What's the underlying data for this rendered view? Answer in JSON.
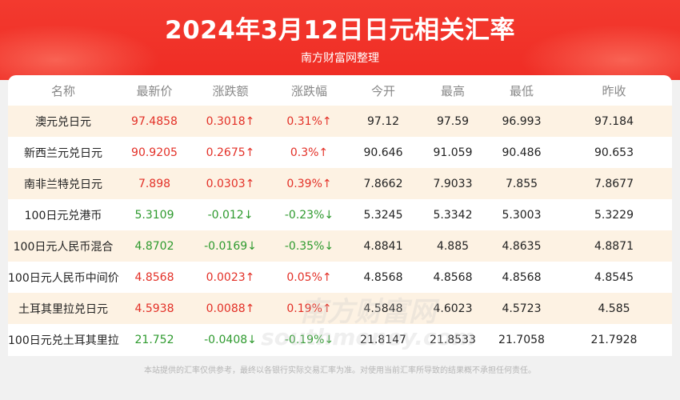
{
  "header": {
    "title": "2024年3月12日日元相关汇率",
    "subtitle": "南方财富网整理"
  },
  "table": {
    "columns": [
      "名称",
      "最新价",
      "涨跌额",
      "涨跌幅",
      "今开",
      "最高",
      "最低",
      "昨收"
    ],
    "rows": [
      {
        "name": "澳元兑日元",
        "latest": "97.4858",
        "change": "0.3018↑",
        "change_pct": "0.31%↑",
        "open": "97.12",
        "high": "97.59",
        "low": "96.993",
        "prev_close": "97.184",
        "direction": "up"
      },
      {
        "name": "新西兰元兑日元",
        "latest": "90.9205",
        "change": "0.2675↑",
        "change_pct": "0.3%↑",
        "open": "90.646",
        "high": "91.059",
        "low": "90.486",
        "prev_close": "90.653",
        "direction": "up"
      },
      {
        "name": "南非兰特兑日元",
        "latest": "7.898",
        "change": "0.0303↑",
        "change_pct": "0.39%↑",
        "open": "7.8662",
        "high": "7.9033",
        "low": "7.855",
        "prev_close": "7.8677",
        "direction": "up"
      },
      {
        "name": "100日元兑港币",
        "latest": "5.3109",
        "change": "-0.012↓",
        "change_pct": "-0.23%↓",
        "open": "5.3245",
        "high": "5.3342",
        "low": "5.3003",
        "prev_close": "5.3229",
        "direction": "down"
      },
      {
        "name": "100日元人民币混合",
        "latest": "4.8702",
        "change": "-0.0169↓",
        "change_pct": "-0.35%↓",
        "open": "4.8841",
        "high": "4.885",
        "low": "4.8635",
        "prev_close": "4.8871",
        "direction": "down"
      },
      {
        "name": "100日元人民币中间价",
        "latest": "4.8568",
        "change": "0.0023↑",
        "change_pct": "0.05%↑",
        "open": "4.8568",
        "high": "4.8568",
        "low": "4.8568",
        "prev_close": "4.8545",
        "direction": "up"
      },
      {
        "name": "土耳其里拉兑日元",
        "latest": "4.5938",
        "change": "0.0088↑",
        "change_pct": "0.19%↑",
        "open": "4.5848",
        "high": "4.6023",
        "low": "4.5723",
        "prev_close": "4.585",
        "direction": "up"
      },
      {
        "name": "100日元兑土耳其里拉",
        "latest": "21.752",
        "change": "-0.0408↓",
        "change_pct": "-0.19%↓",
        "open": "21.8147",
        "high": "21.8533",
        "low": "21.7058",
        "prev_close": "21.7928",
        "direction": "down"
      }
    ]
  },
  "watermark": {
    "text_cn": "南方财富网",
    "text_en": "southmoney.com"
  },
  "footer": {
    "disclaimer": "本站提供的汇率仅供参考，最终以各银行实际交易汇率为准。对使用当前汇率所导致的结果概不承担任何责任。"
  },
  "colors": {
    "header_red": "#ef2c24",
    "up": "#e33027",
    "down": "#2e9a2e",
    "alt_row": "#fdf2e3"
  }
}
